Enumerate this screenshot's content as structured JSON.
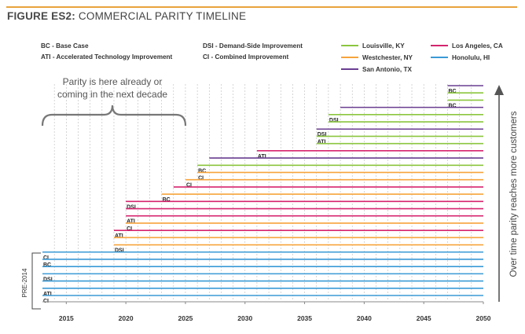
{
  "figure": {
    "label": "FIGURE ES2:",
    "title": "COMMERCIAL PARITY TIMELINE"
  },
  "abbreviations": [
    {
      "text": "BC - Base Case"
    },
    {
      "text": "ATI - Accelerated Technology Improvement"
    },
    {
      "text": "DSI - Demand-Side Improvement"
    },
    {
      "text": "CI - Combined Improvement"
    }
  ],
  "annotation": {
    "line1": "Parity is here already or",
    "line2": "coming in the next decade"
  },
  "pre_label": "PRE-2014",
  "side_label": "Over time parity reaches more customers",
  "colors": {
    "title_rule": "#e8a33d",
    "grid": "#bbbbbb"
  },
  "chart_data": {
    "type": "bar",
    "orientation": "horizontal",
    "x_ticks": [
      2015,
      2020,
      2025,
      2030,
      2035,
      2040,
      2045,
      2050
    ],
    "xlim": [
      2013,
      2050
    ],
    "legend": [
      {
        "name": "Louisville, KY",
        "color": "#8cc63f"
      },
      {
        "name": "Westchester, NY",
        "color": "#f7a43c"
      },
      {
        "name": "San Antonio, TX",
        "color": "#6a3d91"
      },
      {
        "name": "Los Angeles, CA",
        "color": "#d6246e"
      },
      {
        "name": "Honolulu, HI",
        "color": "#3a9ad6"
      }
    ],
    "bars": [
      {
        "label": "BC",
        "series": "San Antonio, TX",
        "start": 2047,
        "end": 2050
      },
      {
        "label": "",
        "series": "Louisville, KY",
        "start": 2047,
        "end": 2050
      },
      {
        "label": "BC",
        "series": "Louisville, KY",
        "start": 2047,
        "end": 2050
      },
      {
        "label": "",
        "series": "San Antonio, TX",
        "start": 2038,
        "end": 2050
      },
      {
        "label": "DSI",
        "series": "Louisville, KY",
        "start": 2037,
        "end": 2050
      },
      {
        "label": "",
        "series": "Louisville, KY",
        "start": 2037,
        "end": 2050
      },
      {
        "label": "DSI",
        "series": "San Antonio, TX",
        "start": 2036,
        "end": 2050
      },
      {
        "label": "ATI",
        "series": "Louisville, KY",
        "start": 2036,
        "end": 2050
      },
      {
        "label": "",
        "series": "Louisville, KY",
        "start": 2036,
        "end": 2050
      },
      {
        "label": "ATI",
        "series": "Los Angeles, CA",
        "start": 2031,
        "end": 2050
      },
      {
        "label": "",
        "series": "San Antonio, TX",
        "start": 2027,
        "end": 2050
      },
      {
        "label": "BC",
        "series": "Louisville, KY",
        "start": 2026,
        "end": 2050
      },
      {
        "label": "CI",
        "series": "Westchester, NY",
        "start": 2026,
        "end": 2050
      },
      {
        "label": "CI",
        "series": "Westchester, NY",
        "start": 2025,
        "end": 2050
      },
      {
        "label": "",
        "series": "Los Angeles, CA",
        "start": 2024,
        "end": 2050
      },
      {
        "label": "BC",
        "series": "Westchester, NY",
        "start": 2023,
        "end": 2050
      },
      {
        "label": "DSI",
        "series": "Los Angeles, CA",
        "start": 2020,
        "end": 2050
      },
      {
        "label": "",
        "series": "Los Angeles, CA",
        "start": 2020,
        "end": 2050
      },
      {
        "label": "ATI",
        "series": "Los Angeles, CA",
        "start": 2020,
        "end": 2050
      },
      {
        "label": "CI",
        "series": "Westchester, NY",
        "start": 2020,
        "end": 2050
      },
      {
        "label": "ATI",
        "series": "Los Angeles, CA",
        "start": 2019,
        "end": 2050
      },
      {
        "label": "",
        "series": "Westchester, NY",
        "start": 2019,
        "end": 2050
      },
      {
        "label": "DSI",
        "series": "Westchester, NY",
        "start": 2019,
        "end": 2050
      },
      {
        "label": "CI",
        "series": "Honolulu, HI",
        "start": 2013,
        "end": 2050
      },
      {
        "label": "BC",
        "series": "Honolulu, HI",
        "start": 2013,
        "end": 2050
      },
      {
        "label": "",
        "series": "Honolulu, HI",
        "start": 2013,
        "end": 2050
      },
      {
        "label": "DSI",
        "series": "Honolulu, HI",
        "start": 2013,
        "end": 2050
      },
      {
        "label": "",
        "series": "Honolulu, HI",
        "start": 2013,
        "end": 2050
      },
      {
        "label": "ATI",
        "series": "Honolulu, HI",
        "start": 2013,
        "end": 2050
      },
      {
        "label": "CI",
        "series": "Honolulu, HI",
        "start": 2013,
        "end": 2050
      }
    ]
  }
}
